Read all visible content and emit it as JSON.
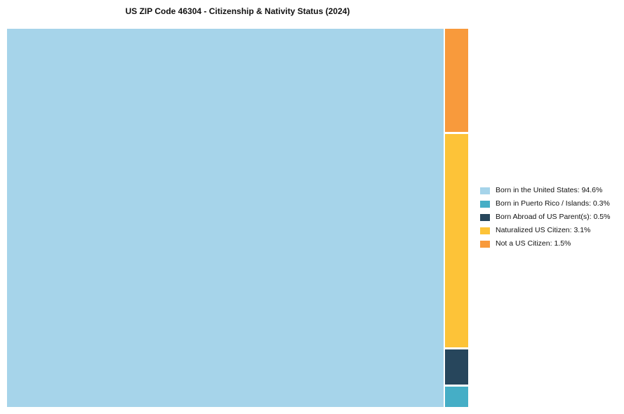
{
  "title": "US ZIP Code 46304 - Citizenship & Nativity Status (2024)",
  "chart_data": {
    "type": "treemap",
    "title": "US ZIP Code 46304 - Citizenship & Nativity Status (2024)",
    "categories": [
      "Born in the United States",
      "Born in Puerto Rico / Islands",
      "Born Abroad of US Parent(s)",
      "Naturalized US Citizen",
      "Not a US Citizen"
    ],
    "values": [
      94.6,
      0.3,
      0.5,
      3.1,
      1.5
    ],
    "unit": "%",
    "colors": [
      "#A6D4EA",
      "#45AEC6",
      "#27465C",
      "#FDC338",
      "#F89A3C"
    ],
    "legend_position": "right",
    "legend_labels": [
      "Born in the United States: 94.6%",
      "Born in Puerto Rico / Islands: 0.3%",
      "Born Abroad of US Parent(s): 0.5%",
      "Naturalized US Citizen: 3.1%",
      "Not a US Citizen: 1.5%"
    ],
    "layout": {
      "main_segment": "Born in the United States",
      "minor_column_order_top_to_bottom": [
        "Not a US Citizen",
        "Naturalized US Citizen",
        "Born Abroad of US Parent(s)",
        "Born in Puerto Rico / Islands"
      ]
    }
  }
}
